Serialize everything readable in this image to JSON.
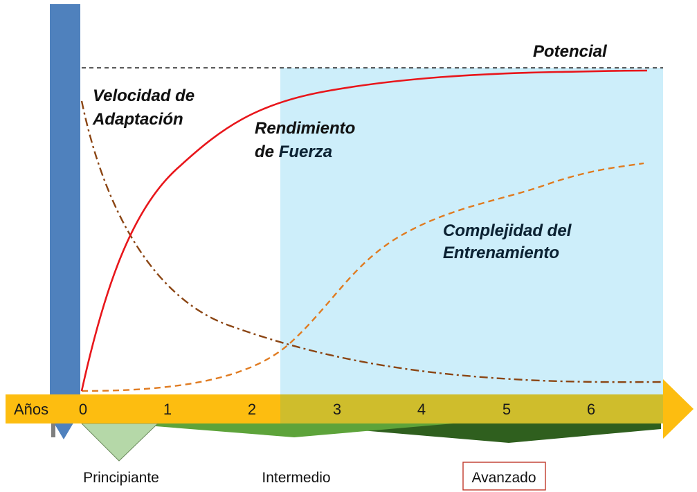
{
  "labels": {
    "potential": "Potencial",
    "adaptation_line1": "Velocidad de",
    "adaptation_line2": "Adaptación",
    "strength_line1": "Rendimiento",
    "strength_line2_a": "de ",
    "strength_line2_b": "Fuerza",
    "complexity_line1": "Complejidad del",
    "complexity_line2": "Entrenamiento"
  },
  "axis": {
    "label": "Años",
    "ticks": [
      "0",
      "1",
      "2",
      "3",
      "4",
      "5",
      "6"
    ]
  },
  "stages": {
    "beginner": "Principiante",
    "intermediate": "Intermedio",
    "advanced": "Avanzado"
  },
  "colors": {
    "advanced_zone": "#cdeefa",
    "axis_bar": "#fdbd10",
    "axis_bar_advanced": "#cfbd2c",
    "vertical_bar": "#4f81bd",
    "strength_curve": "#e8161b",
    "adaptation_curve": "#8b4513",
    "complexity_curve": "#e07b20",
    "beginner_triangle": "#b5d8a8",
    "intermediate_triangle": "#5da33a",
    "advanced_triangle": "#2f5f1e",
    "advanced_box_border": "#c0392b"
  }
}
